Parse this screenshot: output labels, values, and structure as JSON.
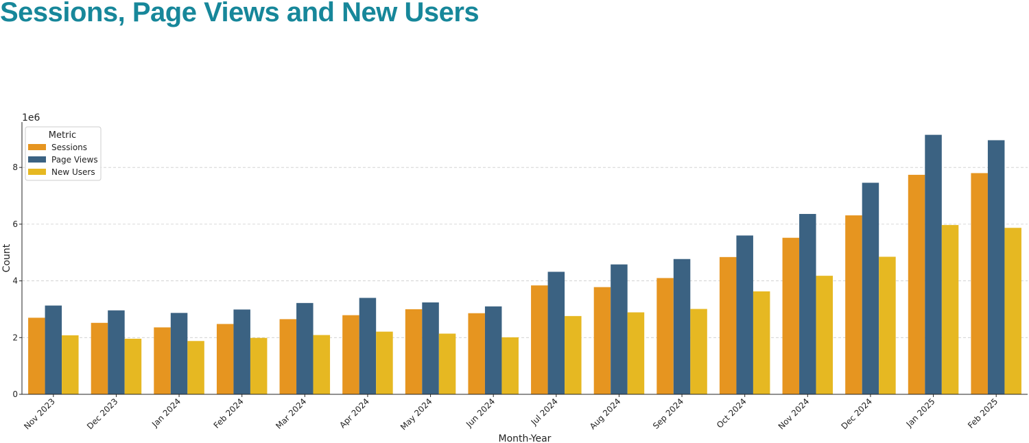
{
  "chart_data": {
    "type": "bar",
    "title": "Sessions, Page Views and New Users",
    "xlabel": "Month-Year",
    "ylabel": "Count",
    "y_offset_label": "1e6",
    "y_scale": 1000000,
    "ylim": [
      0,
      9600000
    ],
    "yticks": [
      0,
      2000000,
      4000000,
      6000000,
      8000000
    ],
    "ytick_labels": [
      "0",
      "2",
      "4",
      "6",
      "8"
    ],
    "grid": "horizontal dashed",
    "legend": {
      "title": "Metric",
      "placement": "top-left"
    },
    "categories": [
      "Nov 2023",
      "Dec 2023",
      "Jan 2024",
      "Feb 2024",
      "Mar 2024",
      "Apr 2024",
      "May 2024",
      "Jun 2024",
      "Jul 2024",
      "Aug 2024",
      "Sep 2024",
      "Oct 2024",
      "Nov 2024",
      "Dec 2024",
      "Jan 2025",
      "Feb 2025"
    ],
    "series": [
      {
        "name": "Sessions",
        "color": "#e69520",
        "values": [
          2700000,
          2520000,
          2360000,
          2480000,
          2650000,
          2790000,
          3000000,
          2860000,
          3840000,
          3780000,
          4100000,
          4840000,
          5520000,
          6310000,
          7740000,
          7800000
        ]
      },
      {
        "name": "Page Views",
        "color": "#3b6282",
        "values": [
          3130000,
          2960000,
          2870000,
          2990000,
          3220000,
          3400000,
          3240000,
          3100000,
          4320000,
          4580000,
          4770000,
          5600000,
          6360000,
          7460000,
          9150000,
          8960000
        ]
      },
      {
        "name": "New Users",
        "color": "#e6b822",
        "values": [
          2080000,
          1960000,
          1880000,
          1990000,
          2090000,
          2210000,
          2140000,
          2010000,
          2760000,
          2890000,
          3010000,
          3630000,
          4180000,
          4850000,
          5970000,
          5870000
        ]
      }
    ]
  }
}
